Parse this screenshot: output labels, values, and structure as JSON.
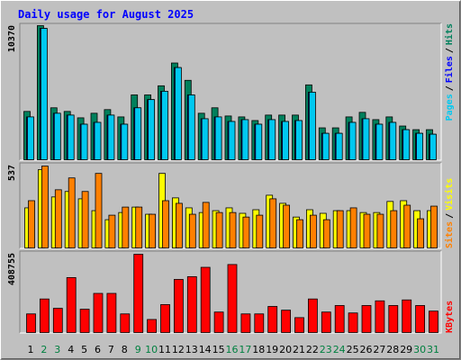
{
  "title": "Daily usage for August 2025",
  "legend_separator": "/",
  "chart_data": [
    {
      "type": "bar",
      "ylim": [
        0,
        10370
      ],
      "yticks": [
        10370
      ],
      "series": [
        {
          "name": "Hits",
          "color": "#00805c",
          "values": [
            3780,
            10370,
            4060,
            3780,
            3290,
            3640,
            3920,
            3360,
            5050,
            5050,
            5750,
            7500,
            6170,
            3640,
            4060,
            3430,
            3360,
            3080,
            3500,
            3500,
            3500,
            5820,
            2520,
            2520,
            3360,
            3710,
            3150,
            3360,
            2660,
            2380,
            2380
          ]
        },
        {
          "name": "Files",
          "color": "#0000ff",
          "values": [
            3360,
            10160,
            3640,
            3500,
            2800,
            2940,
            3500,
            2800,
            4060,
            4690,
            5330,
            7150,
            5050,
            3220,
            3360,
            3010,
            3150,
            2800,
            3150,
            3010,
            3080,
            5260,
            2100,
            2100,
            2940,
            3220,
            2800,
            2940,
            2380,
            2100,
            2030
          ]
        },
        {
          "name": "Pages",
          "color": "#00c8f0",
          "values": [
            3360,
            10160,
            3640,
            3500,
            2800,
            2940,
            3500,
            2800,
            4060,
            4690,
            5330,
            7150,
            5050,
            3220,
            3360,
            3010,
            3150,
            2800,
            3150,
            3010,
            3080,
            5260,
            2100,
            2100,
            2940,
            3220,
            2800,
            2940,
            2380,
            2100,
            2030
          ]
        }
      ]
    },
    {
      "type": "bar",
      "ylim": [
        0,
        537
      ],
      "yticks": [
        537
      ],
      "series": [
        {
          "name": "Visits",
          "color": "#ffff00",
          "values": [
            263,
            508,
            333,
            368,
            321,
            245,
            187,
            233,
            268,
            222,
            484,
            327,
            263,
            233,
            245,
            263,
            228,
            251,
            344,
            292,
            204,
            251,
            228,
            245,
            245,
            233,
            233,
            304,
            309,
            245,
            245
          ]
        },
        {
          "name": "Sites",
          "color": "#ff8000",
          "values": [
            309,
            531,
            379,
            455,
            368,
            484,
            216,
            268,
            268,
            222,
            309,
            292,
            222,
            298,
            233,
            233,
            204,
            216,
            321,
            280,
            187,
            216,
            187,
            245,
            263,
            222,
            222,
            245,
            280,
            193,
            274
          ]
        }
      ]
    },
    {
      "type": "bar",
      "ylim": [
        0,
        408755
      ],
      "yticks": [
        408755
      ],
      "categories": [
        "1",
        "2",
        "3",
        "4",
        "5",
        "6",
        "7",
        "8",
        "9",
        "10",
        "11",
        "12",
        "13",
        "14",
        "15",
        "16",
        "17",
        "18",
        "19",
        "20",
        "21",
        "22",
        "23",
        "24",
        "25",
        "26",
        "27",
        "28",
        "29",
        "30",
        "31"
      ],
      "category_colors": [
        "#000000",
        "#008040",
        "#008040",
        "#000000",
        "#000000",
        "#000000",
        "#000000",
        "#000000",
        "#008040",
        "#008040",
        "#000000",
        "#000000",
        "#000000",
        "#000000",
        "#000000",
        "#008040",
        "#008040",
        "#000000",
        "#000000",
        "#000000",
        "#000000",
        "#000000",
        "#008040",
        "#008040",
        "#000000",
        "#000000",
        "#000000",
        "#000000",
        "#000000",
        "#008040",
        "#008040"
      ],
      "series": [
        {
          "name": "KBytes",
          "color": "#ff0000",
          "values": [
            99800,
            175900,
            128300,
            285200,
            123600,
            204400,
            204400,
            99800,
            404000,
            71300,
            147300,
            275700,
            289900,
            337500,
            109300,
            351700,
            99800,
            99800,
            137800,
            118800,
            80800,
            175900,
            109300,
            142600,
            104600,
            142600,
            166400,
            142600,
            171100,
            142600,
            114100
          ]
        }
      ]
    }
  ]
}
